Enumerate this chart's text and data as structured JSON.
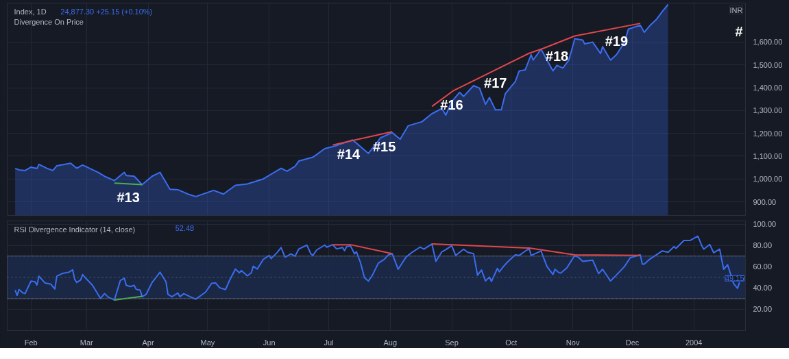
{
  "chart_data": [
    {
      "type": "area",
      "title": "Index, 1D",
      "subtitle": "Divergence On Price",
      "ylabel": "INR",
      "grid": true,
      "tick_labels": "y",
      "annotations": [
        "24,877.30 +25.15 (+0.10%)",
        "#",
        {
          "text": "#13",
          "x": "2003-03-22",
          "y": 978
        },
        {
          "text": "#14",
          "x": "2003-07-11",
          "y": 1165
        },
        {
          "text": "#15",
          "x": "2003-07-29",
          "y": 1199
        },
        {
          "text": "#16",
          "x": "2003-09-01",
          "y": 1382
        },
        {
          "text": "#17",
          "x": "2003-09-23",
          "y": 1478
        },
        {
          "text": "#18",
          "x": "2003-10-24",
          "y": 1596
        },
        {
          "text": "#19",
          "x": "2003-11-23",
          "y": 1662
        }
      ],
      "xlim": [
        "2003-01-20",
        "2004-01-27"
      ],
      "ylim": [
        840,
        1771
      ],
      "xticks": [
        {
          "value": "2003-02-01",
          "label": null
        },
        {
          "value": "2003-03-01",
          "label": null
        },
        {
          "value": "2003-04-01",
          "label": null
        },
        {
          "value": "2003-05-01",
          "label": null
        },
        {
          "value": "2003-06-01",
          "label": null
        },
        {
          "value": "2003-07-01",
          "label": null
        },
        {
          "value": "2003-08-01",
          "label": null
        },
        {
          "value": "2003-09-01",
          "label": null
        },
        {
          "value": "2003-10-01",
          "label": null
        },
        {
          "value": "2003-11-01",
          "label": null
        },
        {
          "value": "2003-12-01",
          "label": null
        },
        {
          "value": "2004-01-01",
          "label": null
        }
      ],
      "yticks": [
        {
          "value": 900,
          "label": "900.00"
        },
        {
          "value": 1000,
          "label": "1,000.00"
        },
        {
          "value": 1100,
          "label": "1,100.00"
        },
        {
          "value": 1200,
          "label": "1,200.00"
        },
        {
          "value": 1300,
          "label": "1,300.00"
        },
        {
          "value": 1400,
          "label": "1,400.00"
        },
        {
          "value": 1500,
          "label": "1,500.00"
        },
        {
          "value": 1600,
          "label": "1,600.00"
        }
      ],
      "series": [
        {
          "color": "#3a6df0",
          "x": [
            "2003-01-24",
            "2003-01-26",
            "2003-01-29",
            "2003-02-01",
            "2003-02-04",
            "2003-02-05",
            "2003-02-09",
            "2003-02-12",
            "2003-02-14",
            "2003-02-21",
            "2003-02-24",
            "2003-02-27",
            "2003-03-07",
            "2003-03-10",
            "2003-03-15",
            "2003-03-20",
            "2003-03-21",
            "2003-03-25",
            "2003-03-29",
            "2003-04-03",
            "2003-04-07",
            "2003-04-12",
            "2003-04-16",
            "2003-04-21",
            "2003-04-25",
            "2003-05-04",
            "2003-05-09",
            "2003-05-15",
            "2003-05-21",
            "2003-05-29",
            "2003-06-07",
            "2003-06-10",
            "2003-06-14",
            "2003-06-16",
            "2003-06-23",
            "2003-06-29",
            "2003-07-04",
            "2003-07-13",
            "2003-07-15",
            "2003-07-21",
            "2003-07-26",
            "2003-07-27",
            "2003-08-02",
            "2003-08-06",
            "2003-08-10",
            "2003-08-17",
            "2003-08-22",
            "2003-08-27",
            "2003-08-29",
            "2003-09-01",
            "2003-09-05",
            "2003-09-07",
            "2003-09-12",
            "2003-09-15",
            "2003-09-18",
            "2003-09-20",
            "2003-09-23",
            "2003-09-26",
            "2003-09-28",
            "2003-10-03",
            "2003-10-05",
            "2003-10-08",
            "2003-10-11",
            "2003-10-12",
            "2003-10-16",
            "2003-10-19",
            "2003-10-22",
            "2003-10-24",
            "2003-10-27",
            "2003-10-30",
            "2003-11-02",
            "2003-11-06",
            "2003-11-07",
            "2003-11-11",
            "2003-11-15",
            "2003-11-16",
            "2003-11-20",
            "2003-11-23",
            "2003-11-27",
            "2003-11-29",
            "2003-12-05",
            "2003-12-07",
            "2003-12-10",
            "2003-12-13",
            "2003-12-16",
            "2003-12-19"
          ],
          "values": [
            1046,
            1040,
            1037,
            1052,
            1046,
            1064,
            1047,
            1037,
            1058,
            1069,
            1047,
            1061,
            1028,
            1012,
            993,
            1029,
            1015,
            1012,
            975,
            1012,
            1029,
            955,
            953,
            934,
            923,
            950,
            934,
            972,
            978,
            1000,
            1047,
            1034,
            1055,
            1079,
            1095,
            1133,
            1144,
            1171,
            1157,
            1112,
            1167,
            1180,
            1203,
            1174,
            1233,
            1251,
            1286,
            1309,
            1280,
            1339,
            1380,
            1362,
            1409,
            1398,
            1327,
            1357,
            1303,
            1303,
            1374,
            1427,
            1474,
            1478,
            1545,
            1521,
            1569,
            1521,
            1474,
            1498,
            1486,
            1521,
            1615,
            1609,
            1592,
            1600,
            1550,
            1580,
            1521,
            1545,
            1598,
            1657,
            1674,
            1643,
            1674,
            1698,
            1733,
            1765
          ]
        },
        {
          "type": "line",
          "color": "#4caf50",
          "x": [
            "2003-03-15",
            "2003-03-29"
          ],
          "values": [
            982,
            975
          ]
        },
        {
          "type": "line",
          "color": "#e0474c",
          "x": [
            "2003-07-03",
            "2003-08-02"
          ],
          "values": [
            1149,
            1207
          ]
        },
        {
          "type": "line",
          "color": "#e0474c",
          "x": [
            "2003-08-22",
            "2003-09-02",
            "2003-10-10",
            "2003-10-17",
            "2003-11-02",
            "2003-12-05"
          ],
          "values": [
            1318,
            1388,
            1551,
            1572,
            1627,
            1682
          ]
        }
      ]
    },
    {
      "type": "line",
      "title": "RSI Divergence Indicator (14, close)",
      "grid": true,
      "annotations": [
        "52.48",
        {
          "text": "49.15",
          "y": 49.15
        }
      ],
      "xlim": [
        "2003-01-20",
        "2004-01-27"
      ],
      "ylim": [
        0,
        103
      ],
      "xticks": [
        {
          "value": "2003-02-01",
          "label": "Feb"
        },
        {
          "value": "2003-03-01",
          "label": "Mar"
        },
        {
          "value": "2003-04-01",
          "label": "Apr"
        },
        {
          "value": "2003-05-01",
          "label": "May"
        },
        {
          "value": "2003-06-01",
          "label": "Jun"
        },
        {
          "value": "2003-07-01",
          "label": "Jul"
        },
        {
          "value": "2003-08-01",
          "label": "Aug"
        },
        {
          "value": "2003-09-01",
          "label": "Sep"
        },
        {
          "value": "2003-10-01",
          "label": "Oct"
        },
        {
          "value": "2003-11-01",
          "label": "Nov"
        },
        {
          "value": "2003-12-01",
          "label": "Dec"
        },
        {
          "value": "2004-01-01",
          "label": "2004"
        }
      ],
      "yticks": [
        {
          "value": 20,
          "label": "20.00"
        },
        {
          "value": 40,
          "label": "40.00"
        },
        {
          "value": 60,
          "label": "60.00"
        },
        {
          "value": 80,
          "label": "80.00"
        },
        {
          "value": 100,
          "label": "100.00"
        }
      ],
      "bands": [
        {
          "axis": "y",
          "from": 30,
          "to": 70,
          "color": "#1b2a4a"
        }
      ],
      "ref_lines": [
        {
          "axis": "y",
          "value": 70,
          "color": "#5a6070",
          "line_style": "dotted"
        },
        {
          "axis": "y",
          "value": 50,
          "color": "#5a6070",
          "line_style": "dotted"
        },
        {
          "axis": "y",
          "value": 30,
          "color": "#5a6070",
          "line_style": "dotted"
        }
      ],
      "series": [
        {
          "color": "#3a6df0",
          "x": [
            "2003-01-24",
            "2003-01-25",
            "2003-01-26",
            "2003-01-28",
            "2003-01-29",
            "2003-02-01",
            "2003-02-03",
            "2003-02-04",
            "2003-02-05",
            "2003-02-08",
            "2003-02-11",
            "2003-02-13",
            "2003-02-14",
            "2003-02-17",
            "2003-02-20",
            "2003-02-22",
            "2003-02-23",
            "2003-02-24",
            "2003-02-26",
            "2003-02-27",
            "2003-02-28",
            "2003-03-04",
            "2003-03-08",
            "2003-03-10",
            "2003-03-12",
            "2003-03-15",
            "2003-03-18",
            "2003-03-20",
            "2003-03-21",
            "2003-03-23",
            "2003-03-25",
            "2003-03-26",
            "2003-03-28",
            "2003-03-29",
            "2003-03-31",
            "2003-04-03",
            "2003-04-07",
            "2003-04-10",
            "2003-04-11",
            "2003-04-13",
            "2003-04-16",
            "2003-04-17",
            "2003-04-19",
            "2003-04-22",
            "2003-04-25",
            "2003-04-28",
            "2003-04-30",
            "2003-05-03",
            "2003-05-05",
            "2003-05-07",
            "2003-05-10",
            "2003-05-12",
            "2003-05-15",
            "2003-05-17",
            "2003-05-18",
            "2003-05-21",
            "2003-05-23",
            "2003-05-24",
            "2003-05-26",
            "2003-05-29",
            "2003-06-01",
            "2003-06-02",
            "2003-06-05",
            "2003-06-07",
            "2003-06-09",
            "2003-06-12",
            "2003-06-14",
            "2003-06-16",
            "2003-06-20",
            "2003-06-22",
            "2003-06-23",
            "2003-06-25",
            "2003-06-29",
            "2003-06-30",
            "2003-07-03",
            "2003-07-05",
            "2003-07-08",
            "2003-07-09",
            "2003-07-10",
            "2003-07-12",
            "2003-07-14",
            "2003-07-15",
            "2003-07-17",
            "2003-07-19",
            "2003-07-21",
            "2003-07-23",
            "2003-07-26",
            "2003-07-29",
            "2003-07-31",
            "2003-08-02",
            "2003-08-05",
            "2003-08-09",
            "2003-08-12",
            "2003-08-16",
            "2003-08-18",
            "2003-08-22",
            "2003-08-24",
            "2003-08-27",
            "2003-08-29",
            "2003-09-01",
            "2003-09-03",
            "2003-09-07",
            "2003-09-09",
            "2003-09-12",
            "2003-09-14",
            "2003-09-16",
            "2003-09-18",
            "2003-09-20",
            "2003-09-21",
            "2003-09-24",
            "2003-09-25",
            "2003-09-27",
            "2003-09-29",
            "2003-10-03",
            "2003-10-05",
            "2003-10-10",
            "2003-10-11",
            "2003-10-16",
            "2003-10-19",
            "2003-10-22",
            "2003-10-23",
            "2003-10-25",
            "2003-10-26",
            "2003-10-29",
            "2003-11-02",
            "2003-11-04",
            "2003-11-06",
            "2003-11-11",
            "2003-11-14",
            "2003-11-16",
            "2003-11-20",
            "2003-11-22",
            "2003-11-27",
            "2003-11-30",
            "2003-12-05",
            "2003-12-06",
            "2003-12-07",
            "2003-12-10",
            "2003-12-13",
            "2003-12-16",
            "2003-12-19",
            "2003-12-22",
            "2003-12-23",
            "2003-12-27",
            "2003-12-30",
            "2004-01-03",
            "2004-01-05",
            "2004-01-06",
            "2004-01-09",
            "2004-01-11",
            "2004-01-14",
            "2004-01-16",
            "2004-01-18",
            "2004-01-21",
            "2004-01-23",
            "2004-01-24"
          ],
          "values": [
            38.0,
            33.1,
            38.5,
            35.3,
            34.7,
            46.5,
            45.9,
            42.9,
            51.1,
            44.8,
            43.6,
            39.1,
            51.1,
            53.8,
            54.8,
            57.1,
            48.2,
            45.2,
            47.5,
            52.6,
            50.4,
            42.5,
            30.2,
            34.7,
            31.3,
            28.7,
            47.0,
            49.2,
            42.5,
            41.4,
            42.5,
            38.7,
            38.0,
            31.8,
            34.0,
            45.2,
            54.8,
            45.9,
            34.0,
            31.8,
            35.3,
            31.8,
            34.7,
            32.0,
            29.5,
            33.5,
            36.2,
            44.4,
            44.8,
            40.3,
            38.5,
            47.0,
            57.8,
            54.2,
            56.4,
            51.5,
            54.2,
            60.5,
            57.8,
            66.8,
            70.6,
            67.7,
            73.3,
            78.0,
            69.0,
            72.1,
            69.9,
            76.7,
            80.3,
            72.1,
            70.6,
            75.8,
            80.3,
            78.4,
            80.7,
            76.7,
            78.0,
            75.1,
            78.9,
            79.6,
            72.1,
            74.0,
            63.9,
            49.7,
            46.5,
            51.9,
            63.3,
            66.9,
            71.1,
            72.3,
            57.6,
            69.1,
            73.5,
            78.4,
            76.5,
            81.4,
            65.0,
            74.0,
            76.0,
            79.7,
            70.6,
            76.5,
            73.5,
            72.3,
            52.0,
            56.9,
            46.6,
            50.3,
            46.1,
            58.4,
            55.2,
            60.1,
            64.2,
            71.1,
            70.6,
            77.2,
            70.6,
            74.8,
            60.1,
            52.7,
            57.6,
            54.4,
            54.0,
            58.9,
            70.6,
            68.6,
            65.0,
            66.2,
            53.5,
            57.6,
            46.6,
            50.3,
            60.1,
            68.6,
            71.1,
            62.5,
            62.5,
            67.4,
            71.1,
            74.8,
            73.5,
            78.9,
            77.2,
            84.6,
            84.6,
            88.7,
            79.7,
            76.5,
            80.9,
            73.1,
            76.5,
            57.6,
            61.8,
            44.2,
            39.7,
            45.3
          ]
        },
        {
          "color": "#4caf50",
          "x": [
            "2003-03-15",
            "2003-03-29"
          ],
          "values": [
            28.7,
            32.2
          ]
        },
        {
          "color": "#e0474c",
          "x": [
            "2003-07-03",
            "2003-07-12",
            "2003-08-02"
          ],
          "values": [
            80.7,
            80.7,
            72.3
          ]
        },
        {
          "color": "#e0474c",
          "x": [
            "2003-08-22",
            "2003-10-10",
            "2003-11-02",
            "2003-12-05"
          ],
          "values": [
            81.4,
            77.5,
            71.1,
            70.6
          ]
        }
      ]
    }
  ]
}
